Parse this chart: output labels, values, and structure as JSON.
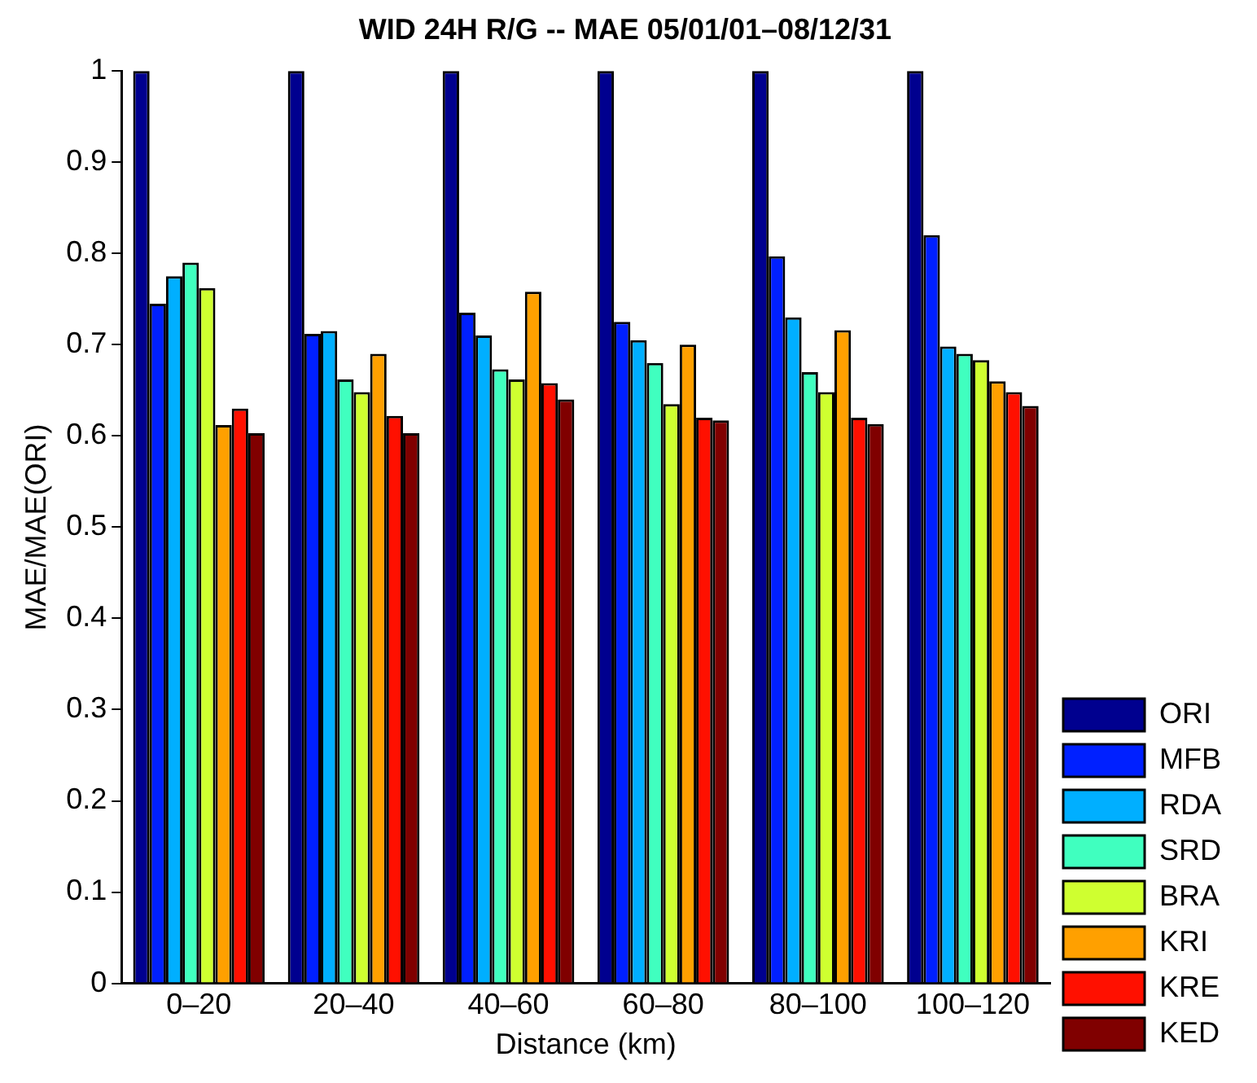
{
  "chart_data": {
    "type": "bar",
    "title": "WID 24H R/G -- MAE 05/01/01–08/12/31",
    "xlabel": "Distance (km)",
    "ylabel": "MAE/MAE(ORI)",
    "categories": [
      "0–20",
      "20–40",
      "40–60",
      "60–80",
      "80–100",
      "100–120"
    ],
    "series": [
      {
        "name": "ORI",
        "color": "#00008f",
        "values": [
          1,
          1,
          1,
          1,
          1,
          1
        ]
      },
      {
        "name": "MFB",
        "color": "#0020ff",
        "values": [
          0.745,
          0.712,
          0.735,
          0.725,
          0.797,
          0.82
        ]
      },
      {
        "name": "RDA",
        "color": "#00afff",
        "values": [
          0.775,
          0.715,
          0.71,
          0.705,
          0.73,
          0.698
        ]
      },
      {
        "name": "SRD",
        "color": "#40ffbf",
        "values": [
          0.79,
          0.662,
          0.673,
          0.68,
          0.67,
          0.69
        ]
      },
      {
        "name": "BRA",
        "color": "#cfff30",
        "values": [
          0.762,
          0.648,
          0.662,
          0.635,
          0.648,
          0.683
        ]
      },
      {
        "name": "KRI",
        "color": "#ffa000",
        "values": [
          0.612,
          0.69,
          0.758,
          0.7,
          0.716,
          0.66
        ]
      },
      {
        "name": "KRE",
        "color": "#ff1000",
        "values": [
          0.63,
          0.622,
          0.658,
          0.62,
          0.62,
          0.648
        ]
      },
      {
        "name": "KED",
        "color": "#800000",
        "values": [
          0.603,
          0.603,
          0.64,
          0.617,
          0.613,
          0.633
        ]
      }
    ],
    "ylim": [
      0,
      1
    ],
    "yticks": [
      0,
      0.1,
      0.2,
      0.3,
      0.4,
      0.5,
      0.6,
      0.7,
      0.8,
      0.9,
      1
    ],
    "grid": false,
    "legend": "bottom right"
  }
}
